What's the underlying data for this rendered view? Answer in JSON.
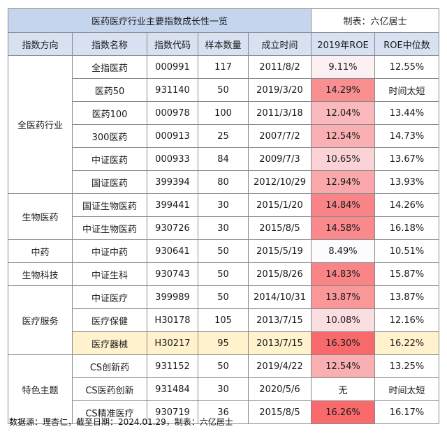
{
  "table": {
    "title": "医药医疗行业主要指数成长性一览",
    "maker": "制表：六亿居士",
    "headers": [
      "指数方向",
      "指数名称",
      "指数代码",
      "样本数量",
      "成立时间",
      "2019年ROE",
      "ROE中位数"
    ],
    "groups": [
      {
        "direction": "全医药行业",
        "rows": [
          {
            "name": "全指医药",
            "code": "000991",
            "count": "117",
            "date": "2011/8/2",
            "roe2019": "9.11%",
            "roe_median": "12.55%",
            "roe_value": 9.11
          },
          {
            "name": "医药50",
            "code": "931140",
            "count": "50",
            "date": "2019/3/20",
            "roe2019": "14.29%",
            "roe_median": "时间太短",
            "roe_value": 14.29
          },
          {
            "name": "医药100",
            "code": "000978",
            "count": "100",
            "date": "2011/3/18",
            "roe2019": "12.04%",
            "roe_median": "13.44%",
            "roe_value": 12.04
          },
          {
            "name": "300医药",
            "code": "000913",
            "count": "25",
            "date": "2007/7/2",
            "roe2019": "12.54%",
            "roe_median": "14.73%",
            "roe_value": 12.54
          },
          {
            "name": "中证医药",
            "code": "000933",
            "count": "84",
            "date": "2009/7/3",
            "roe2019": "10.65%",
            "roe_median": "13.67%",
            "roe_value": 10.65
          },
          {
            "name": "国证医药",
            "code": "399394",
            "count": "80",
            "date": "2012/10/29",
            "roe2019": "12.94%",
            "roe_median": "13.93%",
            "roe_value": 12.94
          }
        ]
      },
      {
        "direction": "生物医药",
        "rows": [
          {
            "name": "国证生物医药",
            "code": "399441",
            "count": "30",
            "date": "2015/1/20",
            "roe2019": "14.84%",
            "roe_median": "14.26%",
            "roe_value": 14.84
          },
          {
            "name": "中证生物医药",
            "code": "930726",
            "count": "30",
            "date": "2015/8/5",
            "roe2019": "14.58%",
            "roe_median": "16.18%",
            "roe_value": 14.58
          }
        ]
      },
      {
        "direction": "中药",
        "rows": [
          {
            "name": "中证中药",
            "code": "930641",
            "count": "50",
            "date": "2015/5/19",
            "roe2019": "8.49%",
            "roe_median": "10.51%",
            "roe_value": 8.49
          }
        ]
      },
      {
        "direction": "生物科技",
        "rows": [
          {
            "name": "中证生科",
            "code": "930743",
            "count": "50",
            "date": "2015/8/26",
            "roe2019": "14.83%",
            "roe_median": "15.87%",
            "roe_value": 14.83
          }
        ]
      },
      {
        "direction": "医疗服务",
        "rows": [
          {
            "name": "中证医疗",
            "code": "399989",
            "count": "50",
            "date": "2014/10/31",
            "roe2019": "13.87%",
            "roe_median": "13.87%",
            "roe_value": 13.87
          },
          {
            "name": "医疗保健",
            "code": "H30178",
            "count": "105",
            "date": "2013/7/15",
            "roe2019": "10.08%",
            "roe_median": "12.16%",
            "roe_value": 10.08
          },
          {
            "name": "医疗器械",
            "code": "H30217",
            "count": "95",
            "date": "2013/7/15",
            "roe2019": "16.30%",
            "roe_median": "16.22%",
            "roe_value": 16.3,
            "highlighted": true
          }
        ]
      },
      {
        "direction": "特色主题",
        "rows": [
          {
            "name": "CS创新药",
            "code": "931152",
            "count": "50",
            "date": "2019/4/22",
            "roe2019": "12.54%",
            "roe_median": "13.25%",
            "roe_value": 12.54
          },
          {
            "name": "CS医药创新",
            "code": "931484",
            "count": "30",
            "date": "2020/5/6",
            "roe2019": "无",
            "roe_median": "时间太短",
            "roe_value": null
          },
          {
            "name": "CS精准医疗",
            "code": "930719",
            "count": "36",
            "date": "2015/8/5",
            "roe2019": "16.26%",
            "roe_median": "16.17%",
            "roe_value": 16.26
          }
        ]
      }
    ]
  },
  "colors": {
    "title_bg": "#c6d5ee",
    "header_bg": "#d7e1f2",
    "highlight_row_bg": "#fff2cc",
    "roe_low": "#fcfcff",
    "roe_high": "#f8696b"
  },
  "footer": "数据源：理杏仁，截至日期：2024.01.29，制表：六亿居士"
}
